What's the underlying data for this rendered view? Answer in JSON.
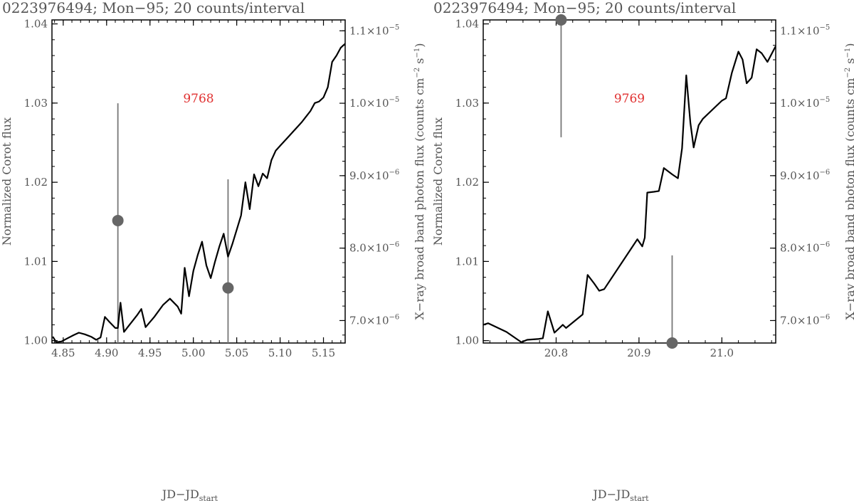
{
  "chart_data": [
    {
      "type": "line",
      "title": "0223976494; Mon−95; 20 counts/interval",
      "annotation": "9768",
      "xlabel_main": "JD−JD",
      "xlabel_sub": "start",
      "ylabel_left": "Normalized Corot flux",
      "ylabel_right_main": "X−ray broad band photon flux (counts cm",
      "ylabel_right_sup1": "−2",
      "ylabel_right_mid": " s",
      "ylabel_right_sup2": "−1",
      "ylabel_right_end": ")",
      "xlim": [
        4.837,
        5.175
      ],
      "ylim": [
        0.9997,
        1.0405
      ],
      "y2lim": [
        6.69e-06,
        1.115e-05
      ],
      "x_ticks": [
        4.85,
        4.9,
        4.95,
        5.0,
        5.05,
        5.1,
        5.15
      ],
      "x_tick_labels": [
        "4.85",
        "4.90",
        "4.95",
        "5.00",
        "5.05",
        "5.10",
        "5.15"
      ],
      "y_ticks": [
        1.0,
        1.01,
        1.02,
        1.03,
        1.04
      ],
      "y_tick_labels": [
        "1.00",
        "1.01",
        "1.02",
        "1.03",
        "1.04"
      ],
      "y2_ticks": [
        7e-06,
        8e-06,
        9e-06,
        1e-05,
        1.1e-05
      ],
      "y2_tick_mant": [
        "7.0×10",
        "8.0×10",
        "9.0×10",
        "1.0×10",
        "1.1×10"
      ],
      "y2_tick_exp": [
        "−6",
        "−6",
        "−6",
        "−5",
        "−5"
      ],
      "series": [
        {
          "x": [
            4.838,
            4.842,
            4.848,
            4.855,
            4.862,
            4.868,
            4.875,
            4.882,
            4.888,
            4.893,
            4.898,
            4.903,
            4.91,
            4.913,
            4.916,
            4.92,
            4.925,
            4.935,
            4.94,
            4.945,
            4.955,
            4.965,
            4.973,
            4.982,
            4.986,
            4.99,
            4.995,
            5.0,
            5.005,
            5.01,
            5.015,
            5.02,
            5.025,
            5.03,
            5.035,
            5.04,
            5.045,
            5.05,
            5.055,
            5.06,
            5.065,
            5.07,
            5.075,
            5.08,
            5.085,
            5.09,
            5.095,
            5.1,
            5.105,
            5.11,
            5.115,
            5.12,
            5.125,
            5.13,
            5.135,
            5.14,
            5.145,
            5.15,
            5.155,
            5.16,
            5.165,
            5.17,
            5.175
          ],
          "y": [
            1.0005,
            0.9998,
            0.9999,
            1.0003,
            1.0007,
            1.001,
            1.0008,
            1.0005,
            1.0001,
            1.0004,
            1.003,
            1.0024,
            1.0016,
            1.0016,
            1.0048,
            1.0011,
            1.0018,
            1.0032,
            1.004,
            1.0017,
            1.003,
            1.0045,
            1.0053,
            1.0043,
            1.0034,
            1.0092,
            1.0056,
            1.0088,
            1.0108,
            1.0125,
            1.0095,
            1.0079,
            1.01,
            1.0119,
            1.0135,
            1.0106,
            1.0122,
            1.014,
            1.0158,
            1.02,
            1.0166,
            1.021,
            1.0195,
            1.0211,
            1.0205,
            1.0228,
            1.024,
            1.0246,
            1.0252,
            1.0258,
            1.0264,
            1.027,
            1.0276,
            1.0283,
            1.029,
            1.03,
            1.0302,
            1.0307,
            1.032,
            1.0352,
            1.036,
            1.037,
            1.0375
          ]
        }
      ],
      "xray_points": [
        {
          "x": 4.913,
          "y": 8.38e-06,
          "err_low": 6.69e-06,
          "err_high": 1e-05
        },
        {
          "x": 5.04,
          "y": 7.45e-06,
          "err_low": 6.69e-06,
          "err_high": 8.95e-06
        }
      ]
    },
    {
      "type": "line",
      "title": "0223976494; Mon−95; 20 counts/interval",
      "annotation": "9769",
      "xlabel_main": "JD−JD",
      "xlabel_sub": "start",
      "ylabel_left": "Normalized Corot flux",
      "ylabel_right_main": "X−ray broad band photon flux (counts cm",
      "ylabel_right_sup1": "−2",
      "ylabel_right_mid": " s",
      "ylabel_right_sup2": "−1",
      "ylabel_right_end": ")",
      "xlim": [
        20.712,
        21.065
      ],
      "ylim": [
        0.9997,
        1.0405
      ],
      "y2lim": [
        6.69e-06,
        1.115e-05
      ],
      "x_ticks": [
        20.8,
        20.9,
        21.0
      ],
      "x_tick_labels": [
        "20.8",
        "20.9",
        "21.0"
      ],
      "y_ticks": [
        1.0,
        1.01,
        1.02,
        1.03,
        1.04
      ],
      "y_tick_labels": [
        "1.00",
        "1.01",
        "1.02",
        "1.03",
        "1.04"
      ],
      "y2_ticks": [
        7e-06,
        8e-06,
        9e-06,
        1e-05,
        1.1e-05
      ],
      "y2_tick_mant": [
        "7.0×10",
        "8.0×10",
        "9.0×10",
        "1.0×10",
        "1.1×10"
      ],
      "y2_tick_exp": [
        "−6",
        "−6",
        "−6",
        "−5",
        "−5"
      ],
      "series": [
        {
          "x": [
            20.712,
            20.718,
            20.74,
            20.758,
            20.765,
            20.778,
            20.784,
            20.79,
            20.798,
            20.808,
            20.812,
            20.832,
            20.838,
            20.846,
            20.852,
            20.858,
            20.898,
            20.904,
            20.907,
            20.91,
            20.918,
            20.924,
            20.93,
            20.94,
            20.947,
            20.952,
            20.957,
            20.962,
            20.966,
            20.972,
            20.977,
            21.0,
            21.005,
            21.012,
            21.02,
            21.025,
            21.03,
            21.036,
            21.042,
            21.048,
            21.055,
            21.065
          ],
          "y": [
            1.002,
            1.0022,
            1.0011,
            0.9998,
            1.0001,
            1.0002,
            1.0003,
            1.0037,
            1.001,
            1.002,
            1.0016,
            1.0033,
            1.0083,
            1.0072,
            1.0063,
            1.0065,
            1.0128,
            1.0119,
            1.013,
            1.0187,
            1.0188,
            1.0189,
            1.0218,
            1.021,
            1.0205,
            1.0243,
            1.0335,
            1.0275,
            1.0244,
            1.0272,
            1.028,
            1.0303,
            1.0306,
            1.0338,
            1.0365,
            1.0355,
            1.0325,
            1.0332,
            1.0368,
            1.0363,
            1.0352,
            1.0372
          ]
        }
      ],
      "xray_points": [
        {
          "x": 20.806,
          "y": 1.115e-05,
          "err_low": 9.53e-06,
          "err_high": 1.115e-05
        },
        {
          "x": 20.94,
          "y": 6.69e-06,
          "err_low": 6.69e-06,
          "err_high": 7.9e-06
        }
      ]
    }
  ],
  "colors": {
    "line": "#000000",
    "xray": "#666666",
    "errorbar": "#777777",
    "text": "#555555",
    "annotation": "#e03030"
  }
}
